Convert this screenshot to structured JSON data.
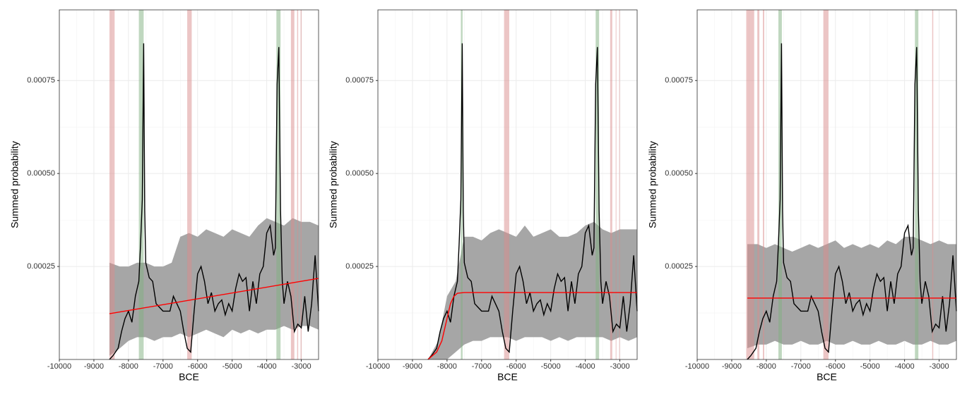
{
  "chart_data": [
    {
      "type": "line",
      "x_label": "BCE",
      "y_label": "Summed probability",
      "xlim": [
        -10000,
        -2500
      ],
      "ylim": [
        0,
        0.00094
      ],
      "xticks": [
        -10000,
        -9000,
        -8000,
        -7000,
        -6000,
        -5000,
        -4000,
        -3000
      ],
      "yticks": [
        0.00025,
        {
          "value": 0.0005,
          "label": "0.00050"
        },
        0.00075
      ],
      "grid": true,
      "spd": {
        "color": "#000000",
        "x": [
          -8550,
          -8450,
          -8300,
          -8200,
          -8100,
          -8000,
          -7900,
          -7800,
          -7700,
          -7650,
          -7600,
          -7560,
          -7530,
          -7500,
          -7400,
          -7300,
          -7200,
          -7100,
          -7000,
          -6900,
          -6800,
          -6700,
          -6600,
          -6500,
          -6400,
          -6300,
          -6200,
          -6100,
          -6000,
          -5900,
          -5800,
          -5700,
          -5600,
          -5500,
          -5400,
          -5300,
          -5200,
          -5100,
          -5000,
          -4900,
          -4800,
          -4700,
          -4600,
          -4500,
          -4400,
          -4300,
          -4200,
          -4100,
          -4000,
          -3900,
          -3800,
          -3750,
          -3700,
          -3650,
          -3600,
          -3550,
          -3500,
          -3400,
          -3300,
          -3200,
          -3100,
          -3000,
          -2900,
          -2800,
          -2700,
          -2600,
          -2500
        ],
        "values": [
          0,
          1e-05,
          3e-05,
          7.5e-05,
          0.00011,
          0.00013,
          0.0001,
          0.00017,
          0.00021,
          0.00031,
          0.00043,
          0.00085,
          0.0004,
          0.00026,
          0.00022,
          0.00021,
          0.00015,
          0.00014,
          0.00013,
          0.00013,
          0.00013,
          0.00017,
          0.00015,
          0.00013,
          7.5e-05,
          3e-05,
          2e-05,
          0.00013,
          0.00023,
          0.00025,
          0.00021,
          0.00015,
          0.00018,
          0.00013,
          0.00015,
          0.00016,
          0.00012,
          0.00015,
          0.00013,
          0.00019,
          0.00023,
          0.00021,
          0.00022,
          0.00013,
          0.00021,
          0.00015,
          0.00023,
          0.00025,
          0.00034,
          0.00036,
          0.00028,
          0.0003,
          0.00074,
          0.00084,
          0.0004,
          0.00021,
          0.00015,
          0.00021,
          0.00017,
          7.5e-05,
          9.5e-05,
          8.5e-05,
          0.00017,
          7.5e-05,
          0.00015,
          0.00028,
          0.00013
        ]
      },
      "envelope": {
        "color": "#a6a6a6",
        "x": [
          -8550,
          -8250,
          -8000,
          -7750,
          -7500,
          -7250,
          -7000,
          -6750,
          -6500,
          -6250,
          -6000,
          -5750,
          -5500,
          -5250,
          -5000,
          -4750,
          -4500,
          -4250,
          -4000,
          -3750,
          -3500,
          -3250,
          -3000,
          -2750,
          -2500
        ],
        "upper": [
          0.00026,
          0.00025,
          0.00025,
          0.00026,
          0.00026,
          0.00025,
          0.00025,
          0.00026,
          0.00033,
          0.00034,
          0.00033,
          0.00035,
          0.00034,
          0.00033,
          0.00035,
          0.00034,
          0.00033,
          0.00036,
          0.00038,
          0.00037,
          0.00036,
          0.00038,
          0.00037,
          0.00037,
          0.00036
        ],
        "lower": [
          1e-05,
          3e-05,
          5e-05,
          6e-05,
          6e-05,
          5e-05,
          6e-05,
          6e-05,
          7e-05,
          6e-05,
          7e-05,
          8e-05,
          7e-05,
          6e-05,
          8e-05,
          7e-05,
          8e-05,
          7e-05,
          8e-05,
          8e-05,
          9e-05,
          8e-05,
          9e-05,
          9e-05,
          8e-05
        ]
      },
      "model": {
        "color": "#ff0000",
        "x": [
          -8550,
          -2500
        ],
        "values": [
          0.000123,
          0.000218
        ]
      },
      "negative_color": "#d98c8c",
      "positive_color": "#7fb07f",
      "negative_bands": [
        [
          -8550,
          -8400
        ],
        [
          -6300,
          -6170
        ],
        [
          -3300,
          -3200
        ],
        [
          -3120,
          -3090
        ],
        [
          -3020,
          -2990
        ]
      ],
      "positive_bands": [
        [
          -7700,
          -7560
        ],
        [
          -3720,
          -3600
        ]
      ]
    },
    {
      "type": "line",
      "x_label": "BCE",
      "y_label": "Summed probability",
      "xlim": [
        -10000,
        -2500
      ],
      "ylim": [
        0,
        0.00094
      ],
      "xticks": [
        -10000,
        -9000,
        -8000,
        -7000,
        -6000,
        -5000,
        -4000,
        -3000
      ],
      "yticks": [
        0.00025,
        {
          "value": 0.0005,
          "label": "0.00050"
        },
        0.00075
      ],
      "grid": true,
      "spd": {
        "color": "#000000",
        "x": [
          -8550,
          -8450,
          -8300,
          -8200,
          -8100,
          -8000,
          -7900,
          -7800,
          -7700,
          -7650,
          -7600,
          -7560,
          -7530,
          -7500,
          -7400,
          -7300,
          -7200,
          -7100,
          -7000,
          -6900,
          -6800,
          -6700,
          -6600,
          -6500,
          -6400,
          -6300,
          -6200,
          -6100,
          -6000,
          -5900,
          -5800,
          -5700,
          -5600,
          -5500,
          -5400,
          -5300,
          -5200,
          -5100,
          -5000,
          -4900,
          -4800,
          -4700,
          -4600,
          -4500,
          -4400,
          -4300,
          -4200,
          -4100,
          -4000,
          -3900,
          -3800,
          -3750,
          -3700,
          -3650,
          -3600,
          -3550,
          -3500,
          -3400,
          -3300,
          -3200,
          -3100,
          -3000,
          -2900,
          -2800,
          -2700,
          -2600,
          -2500
        ],
        "values": [
          0,
          1e-05,
          3e-05,
          7.5e-05,
          0.00011,
          0.00013,
          0.0001,
          0.00017,
          0.00021,
          0.00031,
          0.00043,
          0.00085,
          0.0004,
          0.00026,
          0.00022,
          0.00021,
          0.00015,
          0.00014,
          0.00013,
          0.00013,
          0.00013,
          0.00017,
          0.00015,
          0.00013,
          7.5e-05,
          3e-05,
          2e-05,
          0.00013,
          0.00023,
          0.00025,
          0.00021,
          0.00015,
          0.00018,
          0.00013,
          0.00015,
          0.00016,
          0.00012,
          0.00015,
          0.00013,
          0.00019,
          0.00023,
          0.00021,
          0.00022,
          0.00013,
          0.00021,
          0.00015,
          0.00023,
          0.00025,
          0.00034,
          0.00036,
          0.00028,
          0.0003,
          0.00074,
          0.00084,
          0.0004,
          0.00021,
          0.00015,
          0.00021,
          0.00017,
          7.5e-05,
          9.5e-05,
          8.5e-05,
          0.00017,
          7.5e-05,
          0.00015,
          0.00028,
          0.00013
        ]
      },
      "envelope": {
        "color": "#a6a6a6",
        "x": [
          -8550,
          -8250,
          -8000,
          -7750,
          -7500,
          -7250,
          -7000,
          -6750,
          -6500,
          -6250,
          -6000,
          -5750,
          -5500,
          -5250,
          -5000,
          -4750,
          -4500,
          -4250,
          -4000,
          -3750,
          -3500,
          -3250,
          -3000,
          -2750,
          -2500
        ],
        "upper": [
          0,
          5e-05,
          0.00017,
          0.00021,
          0.00033,
          0.00033,
          0.00032,
          0.00034,
          0.00035,
          0.00034,
          0.00033,
          0.00036,
          0.00033,
          0.00034,
          0.00035,
          0.00033,
          0.00033,
          0.00034,
          0.00036,
          0.00037,
          0.00035,
          0.00034,
          0.00035,
          0.00035,
          0.00035
        ],
        "lower": [
          0,
          0,
          0,
          2e-05,
          4e-05,
          5e-05,
          5e-05,
          6e-05,
          6e-05,
          6e-05,
          5e-05,
          6e-05,
          6e-05,
          6e-05,
          5e-05,
          6e-05,
          5e-05,
          6e-05,
          6e-05,
          6e-05,
          6e-05,
          5e-05,
          6e-05,
          5e-05,
          6e-05
        ]
      },
      "model": {
        "color": "#ff0000",
        "x": [
          -8550,
          -8300,
          -8150,
          -8000,
          -7900,
          -7800,
          -7700,
          -7500,
          -2500
        ],
        "values": [
          0,
          2e-05,
          5e-05,
          0.00011,
          0.00015,
          0.00017,
          0.000178,
          0.00018,
          0.00018
        ]
      },
      "negative_color": "#d98c8c",
      "positive_color": "#7fb07f",
      "negative_bands": [
        [
          -6350,
          -6200
        ],
        [
          -3280,
          -3220
        ],
        [
          -3120,
          -3100
        ],
        [
          -3020,
          -3000
        ]
      ],
      "positive_bands": [
        [
          -7600,
          -7550
        ],
        [
          -3700,
          -3600
        ]
      ]
    },
    {
      "type": "line",
      "x_label": "BCE",
      "y_label": "Summed probability",
      "xlim": [
        -10000,
        -2500
      ],
      "ylim": [
        0,
        0.00094
      ],
      "xticks": [
        -10000,
        -9000,
        -8000,
        -7000,
        -6000,
        -5000,
        -4000,
        -3000
      ],
      "yticks": [
        0.00025,
        {
          "value": 0.0005,
          "label": "0.00050"
        },
        0.00075
      ],
      "grid": true,
      "spd": {
        "color": "#000000",
        "x": [
          -8550,
          -8450,
          -8300,
          -8200,
          -8100,
          -8000,
          -7900,
          -7800,
          -7700,
          -7650,
          -7600,
          -7560,
          -7530,
          -7500,
          -7400,
          -7300,
          -7200,
          -7100,
          -7000,
          -6900,
          -6800,
          -6700,
          -6600,
          -6500,
          -6400,
          -6300,
          -6200,
          -6100,
          -6000,
          -5900,
          -5800,
          -5700,
          -5600,
          -5500,
          -5400,
          -5300,
          -5200,
          -5100,
          -5000,
          -4900,
          -4800,
          -4700,
          -4600,
          -4500,
          -4400,
          -4300,
          -4200,
          -4100,
          -4000,
          -3900,
          -3800,
          -3750,
          -3700,
          -3650,
          -3600,
          -3550,
          -3500,
          -3400,
          -3300,
          -3200,
          -3100,
          -3000,
          -2900,
          -2800,
          -2700,
          -2600,
          -2500
        ],
        "values": [
          0,
          1e-05,
          3e-05,
          7.5e-05,
          0.00011,
          0.00013,
          0.0001,
          0.00017,
          0.00021,
          0.00031,
          0.00043,
          0.00085,
          0.0004,
          0.00026,
          0.00022,
          0.00021,
          0.00015,
          0.00014,
          0.00013,
          0.00013,
          0.00013,
          0.00017,
          0.00015,
          0.00013,
          7.5e-05,
          3e-05,
          2e-05,
          0.00013,
          0.00023,
          0.00025,
          0.00021,
          0.00015,
          0.00018,
          0.00013,
          0.00015,
          0.00016,
          0.00012,
          0.00015,
          0.00013,
          0.00019,
          0.00023,
          0.00021,
          0.00022,
          0.00013,
          0.00021,
          0.00015,
          0.00023,
          0.00025,
          0.00034,
          0.00036,
          0.00028,
          0.0003,
          0.00074,
          0.00084,
          0.0004,
          0.00021,
          0.00015,
          0.00021,
          0.00017,
          7.5e-05,
          9.5e-05,
          8.5e-05,
          0.00017,
          7.5e-05,
          0.00015,
          0.00028,
          0.00013
        ]
      },
      "envelope": {
        "color": "#a6a6a6",
        "x": [
          -8550,
          -8250,
          -8000,
          -7750,
          -7500,
          -7250,
          -7000,
          -6750,
          -6500,
          -6250,
          -6000,
          -5750,
          -5500,
          -5250,
          -5000,
          -4750,
          -4500,
          -4250,
          -4000,
          -3750,
          -3500,
          -3250,
          -3000,
          -2750,
          -2500
        ],
        "upper": [
          0.00031,
          0.00031,
          0.0003,
          0.00031,
          0.0003,
          0.00029,
          0.0003,
          0.00031,
          0.0003,
          0.00031,
          0.00032,
          0.0003,
          0.00031,
          0.0003,
          0.00031,
          0.0003,
          0.00032,
          0.00031,
          0.00033,
          0.00033,
          0.00032,
          0.00031,
          0.00032,
          0.00031,
          0.00031
        ],
        "lower": [
          3e-05,
          4e-05,
          4e-05,
          5e-05,
          4e-05,
          4e-05,
          5e-05,
          4e-05,
          4e-05,
          5e-05,
          4e-05,
          4e-05,
          5e-05,
          4e-05,
          4e-05,
          5e-05,
          4e-05,
          4e-05,
          5e-05,
          4e-05,
          4e-05,
          5e-05,
          4e-05,
          4e-05,
          5e-05
        ]
      },
      "model": {
        "color": "#ff0000",
        "x": [
          -8550,
          -2500
        ],
        "values": [
          0.000165,
          0.000165
        ]
      },
      "negative_color": "#d98c8c",
      "positive_color": "#7fb07f",
      "negative_bands": [
        [
          -8580,
          -8350
        ],
        [
          -8260,
          -8200
        ],
        [
          -8100,
          -8060
        ],
        [
          -6350,
          -6200
        ],
        [
          -3200,
          -3170
        ]
      ],
      "positive_bands": [
        [
          -7650,
          -7550
        ],
        [
          -3700,
          -3600
        ]
      ]
    }
  ]
}
